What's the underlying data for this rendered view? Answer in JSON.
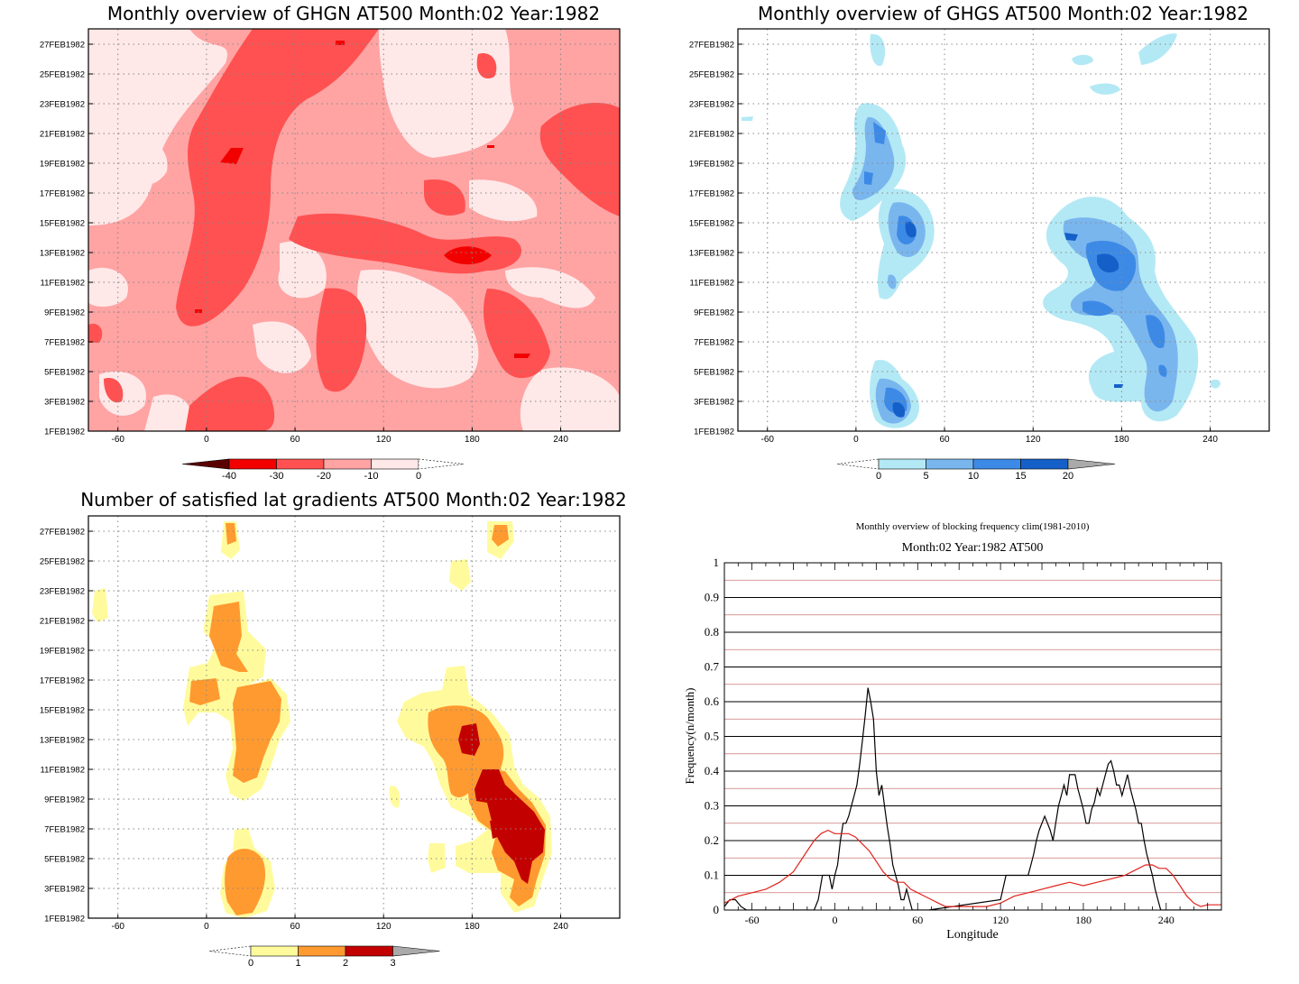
{
  "panels": [
    {
      "title": "Monthly overview of GHGN AT500 Month:02 Year:1982",
      "colorbar": {
        "ticks": [
          "-40",
          "-30",
          "-20",
          "-10",
          "0"
        ],
        "colors": [
          "#5b0000",
          "#f20000",
          "#ff5151",
          "#ffa3a3",
          "#ffe8e8"
        ],
        "open_end": "right"
      }
    },
    {
      "title": "Monthly overview of GHGS AT500 Month:02 Year:1982",
      "colorbar": {
        "ticks": [
          "0",
          "5",
          "10",
          "15",
          "20"
        ],
        "colors": [
          "#b3e9f5",
          "#7ab6ee",
          "#3d8ae6",
          "#1560c8",
          "#aaaaaa"
        ],
        "open_end": "left"
      }
    },
    {
      "title": "Number of satisfied lat gradients AT500 Month:02 Year:1982",
      "colorbar": {
        "ticks": [
          "0",
          "1",
          "2",
          "3"
        ],
        "colors": [
          "#fffb9d",
          "#ff9a30",
          "#c30000",
          "#aaaaaa"
        ],
        "open_end": "left"
      }
    }
  ],
  "common_axes": {
    "y_dates": [
      "1FEB1982",
      "3FEB1982",
      "5FEB1982",
      "7FEB1982",
      "9FEB1982",
      "11FEB1982",
      "13FEB1982",
      "15FEB1982",
      "17FEB1982",
      "19FEB1982",
      "21FEB1982",
      "23FEB1982",
      "25FEB1982",
      "27FEB1982"
    ],
    "x_ticks": [
      "-60",
      "0",
      "60",
      "120",
      "180",
      "240"
    ]
  },
  "chart_data": [
    {
      "type": "heatmap",
      "title": "Monthly overview of GHGN AT500 Month:02 Year:1982",
      "xlim": [
        -80,
        280
      ],
      "x_ticks": [
        -60,
        0,
        60,
        120,
        180,
        240
      ],
      "y_ticks": [
        "1FEB1982",
        "3FEB1982",
        "5FEB1982",
        "7FEB1982",
        "9FEB1982",
        "11FEB1982",
        "13FEB1982",
        "15FEB1982",
        "17FEB1982",
        "19FEB1982",
        "21FEB1982",
        "23FEB1982",
        "25FEB1982",
        "27FEB1982"
      ],
      "levels": [
        -40,
        -30,
        -20,
        -10,
        0
      ]
    },
    {
      "type": "heatmap",
      "title": "Monthly overview of GHGS AT500 Month:02 Year:1982",
      "xlim": [
        -80,
        280
      ],
      "x_ticks": [
        -60,
        0,
        60,
        120,
        180,
        240
      ],
      "y_ticks": [
        "1FEB1982",
        "3FEB1982",
        "5FEB1982",
        "7FEB1982",
        "9FEB1982",
        "11FEB1982",
        "13FEB1982",
        "15FEB1982",
        "17FEB1982",
        "19FEB1982",
        "21FEB1982",
        "23FEB1982",
        "25FEB1982",
        "27FEB1982"
      ],
      "levels": [
        0,
        5,
        10,
        15,
        20
      ]
    },
    {
      "type": "heatmap",
      "title": "Number of satisfied lat gradients AT500 Month:02 Year:1982",
      "xlim": [
        -80,
        280
      ],
      "x_ticks": [
        -60,
        0,
        60,
        120,
        180,
        240
      ],
      "y_ticks": [
        "1FEB1982",
        "3FEB1982",
        "5FEB1982",
        "7FEB1982",
        "9FEB1982",
        "11FEB1982",
        "13FEB1982",
        "15FEB1982",
        "17FEB1982",
        "19FEB1982",
        "21FEB1982",
        "23FEB1982",
        "25FEB1982",
        "27FEB1982"
      ],
      "levels": [
        0,
        1,
        2,
        3
      ]
    },
    {
      "type": "line",
      "title": "Monthly overview of blocking frequency clim(1981-2010)",
      "subtitle": "Month:02 Year:1982  AT500",
      "xlabel": "Longitude",
      "ylabel": "Frequency(n/month)",
      "xlim": [
        -80,
        280
      ],
      "ylim": [
        0,
        1
      ],
      "x_ticks": [
        -60,
        0,
        60,
        120,
        180,
        240
      ],
      "y_ticks": [
        "0",
        "0.1",
        "0.2",
        "0.3",
        "0.4",
        "0.5",
        "0.6",
        "0.7",
        "0.8",
        "0.9",
        "1"
      ],
      "series": [
        {
          "color": "#000000",
          "x": [
            -80,
            -76,
            -72,
            -68,
            -64,
            -15,
            -12,
            -9,
            -6,
            -4,
            -2,
            0,
            2,
            4,
            6,
            8,
            10,
            12,
            14,
            16,
            18,
            20,
            22,
            24,
            26,
            28,
            30,
            32,
            34,
            36,
            38,
            40,
            42,
            44,
            46,
            48,
            50,
            52,
            54,
            56,
            58,
            60,
            62,
            64,
            66,
            68,
            120,
            124,
            128,
            132,
            136,
            140,
            142,
            144,
            146,
            148,
            150,
            152,
            154,
            156,
            158,
            160,
            162,
            164,
            166,
            168,
            170,
            172,
            174,
            176,
            178,
            180,
            182,
            184,
            186,
            188,
            190,
            192,
            194,
            196,
            198,
            200,
            202,
            204,
            206,
            208,
            210,
            212,
            214,
            216,
            218,
            220,
            222,
            224,
            226,
            228,
            230,
            232,
            234,
            236,
            238,
            240,
            242,
            244,
            280
          ],
          "y": [
            0.01,
            0.03,
            0.03,
            0.01,
            0.0,
            0.0,
            0.03,
            0.1,
            0.1,
            0.1,
            0.06,
            0.1,
            0.13,
            0.2,
            0.25,
            0.25,
            0.27,
            0.3,
            0.33,
            0.36,
            0.42,
            0.49,
            0.56,
            0.64,
            0.6,
            0.55,
            0.4,
            0.33,
            0.36,
            0.3,
            0.24,
            0.19,
            0.13,
            0.1,
            0.07,
            0.03,
            0.03,
            0.06,
            0.03,
            0.0,
            0.0,
            0.0,
            0.0,
            0.0,
            0.0,
            0.0,
            0.03,
            0.1,
            0.1,
            0.1,
            0.1,
            0.1,
            0.13,
            0.16,
            0.2,
            0.23,
            0.25,
            0.27,
            0.25,
            0.23,
            0.2,
            0.25,
            0.3,
            0.33,
            0.36,
            0.33,
            0.39,
            0.39,
            0.39,
            0.35,
            0.32,
            0.29,
            0.25,
            0.25,
            0.29,
            0.31,
            0.35,
            0.33,
            0.36,
            0.39,
            0.42,
            0.43,
            0.4,
            0.36,
            0.36,
            0.33,
            0.36,
            0.39,
            0.35,
            0.32,
            0.29,
            0.25,
            0.25,
            0.2,
            0.16,
            0.13,
            0.1,
            0.06,
            0.03,
            0.0,
            0.0,
            0.0,
            0.0,
            0.0,
            0.0
          ]
        },
        {
          "color": "#e0231c",
          "x": [
            -80,
            -70,
            -60,
            -50,
            -40,
            -30,
            -20,
            -15,
            -10,
            -5,
            0,
            5,
            10,
            15,
            20,
            25,
            30,
            35,
            40,
            45,
            50,
            55,
            60,
            65,
            70,
            75,
            80,
            90,
            100,
            110,
            120,
            130,
            140,
            150,
            160,
            170,
            180,
            190,
            200,
            210,
            220,
            225,
            230,
            235,
            240,
            245,
            250,
            255,
            260,
            265,
            270,
            280
          ],
          "y": [
            0.02,
            0.04,
            0.05,
            0.06,
            0.08,
            0.11,
            0.17,
            0.2,
            0.22,
            0.23,
            0.22,
            0.22,
            0.22,
            0.21,
            0.19,
            0.17,
            0.14,
            0.11,
            0.09,
            0.08,
            0.08,
            0.06,
            0.05,
            0.04,
            0.03,
            0.02,
            0.01,
            0.01,
            0.01,
            0.01,
            0.02,
            0.04,
            0.05,
            0.06,
            0.07,
            0.08,
            0.07,
            0.08,
            0.09,
            0.1,
            0.12,
            0.13,
            0.13,
            0.12,
            0.12,
            0.1,
            0.07,
            0.04,
            0.02,
            0.01,
            0.015,
            0.015
          ]
        }
      ]
    }
  ]
}
